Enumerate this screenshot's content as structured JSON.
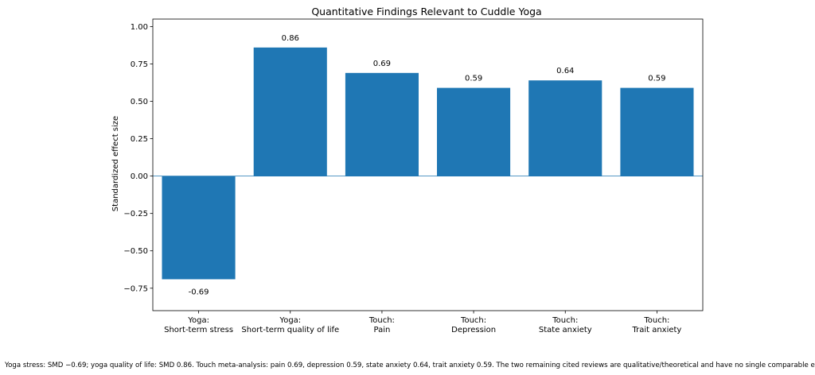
{
  "chart_data": {
    "type": "bar",
    "title": "Quantitative Findings Relevant to Cuddle Yoga",
    "xlabel": "",
    "ylabel": "Standardized effect size",
    "ylim": [
      -0.9,
      1.05
    ],
    "yticks": [
      "1.00",
      "0.75",
      "0.50",
      "0.25",
      "0.00",
      "−0.25",
      "−0.50",
      "−0.75"
    ],
    "categories": [
      [
        "Yoga:",
        "Short-term stress"
      ],
      [
        "Yoga:",
        "Short-term quality of life"
      ],
      [
        "Touch:",
        "Pain"
      ],
      [
        "Touch:",
        "Depression"
      ],
      [
        "Touch:",
        "State anxiety"
      ],
      [
        "Touch:",
        "Trait anxiety"
      ]
    ],
    "values": [
      -0.69,
      0.86,
      0.69,
      0.59,
      0.64,
      0.59
    ],
    "value_labels": [
      "-0.69",
      "0.86",
      "0.69",
      "0.59",
      "0.64",
      "0.59"
    ],
    "grid": false,
    "colors": {
      "bar": "#1f77b4",
      "zero_line": "#1f77b4"
    }
  },
  "footnote": "Yoga stress: SMD −0.69; yoga quality of life: SMD 0.86. Touch meta-analysis: pain 0.69, depression 0.59, state anxiety 0.64, trait anxiety 0.59. The two remaining cited reviews are qualitative/theoretical and have no single comparable effect size."
}
